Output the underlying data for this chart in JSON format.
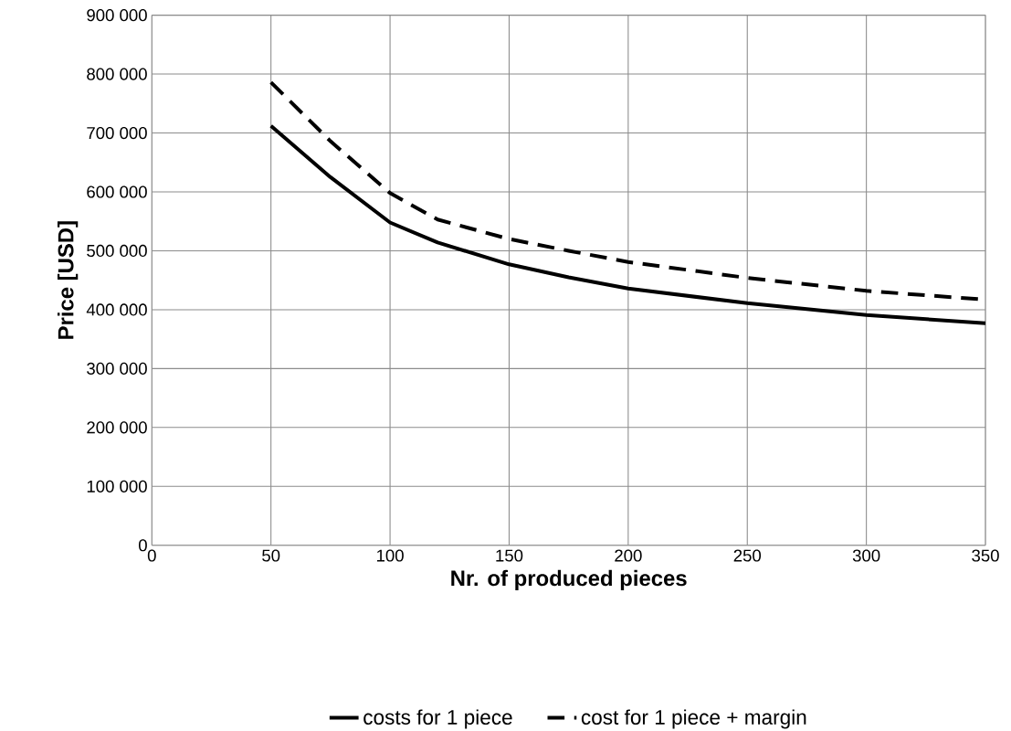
{
  "chart_data": {
    "type": "line",
    "xlabel": "Nr. of produced pieces",
    "ylabel": "Price [USD]",
    "xlim": [
      0,
      350
    ],
    "xticks": [
      0,
      50,
      100,
      150,
      200,
      250,
      300,
      350
    ],
    "ylim": [
      0,
      900000
    ],
    "yticks": [
      {
        "value": 0,
        "label": "0"
      },
      {
        "value": 100000,
        "label": "100 000"
      },
      {
        "value": 200000,
        "label": "200 000"
      },
      {
        "value": 300000,
        "label": "300 000"
      },
      {
        "value": 400000,
        "label": "400 000"
      },
      {
        "value": 500000,
        "label": "500 000"
      },
      {
        "value": 600000,
        "label": "600 000"
      },
      {
        "value": 700000,
        "label": "700 000"
      },
      {
        "value": 800000,
        "label": "800 000"
      },
      {
        "value": 900000,
        "label": "900 000"
      }
    ],
    "grid": true,
    "legend": "bottom",
    "series": [
      {
        "name": "costs for 1 piece",
        "color": "#000000",
        "line_style": "solid",
        "x": [
          50,
          75,
          100,
          120,
          150,
          175,
          200,
          250,
          300,
          350
        ],
        "values": [
          712000,
          625000,
          548000,
          514000,
          477000,
          455000,
          436000,
          411000,
          391000,
          377000
        ]
      },
      {
        "name": "cost for 1 piece + margin",
        "color": "#000000",
        "line_style": "dashed",
        "x": [
          50,
          75,
          100,
          120,
          150,
          175,
          200,
          250,
          300,
          350
        ],
        "values": [
          786000,
          686000,
          598000,
          553000,
          520000,
          500000,
          481000,
          454000,
          432000,
          417000
        ]
      }
    ]
  }
}
